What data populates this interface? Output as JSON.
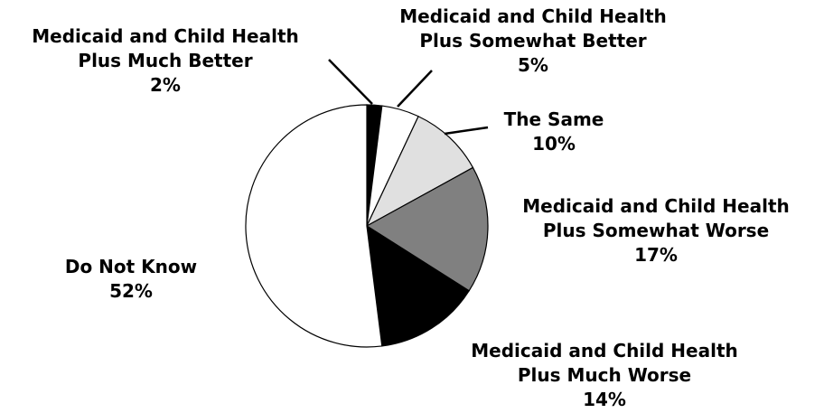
{
  "chart_data": {
    "type": "pie",
    "title": "",
    "start_angle_deg": 0,
    "direction": "clockwise",
    "slices": [
      {
        "label_lines": [
          "Medicaid and Child Health",
          "Plus Much Better"
        ],
        "value": 2,
        "value_label": "2%",
        "color": "#000000"
      },
      {
        "label_lines": [
          "Medicaid and Child Health",
          "Plus Somewhat Better"
        ],
        "value": 5,
        "value_label": "5%",
        "color": "#ffffff"
      },
      {
        "label_lines": [
          "The Same"
        ],
        "value": 10,
        "value_label": "10%",
        "color": "#e0e0e0"
      },
      {
        "label_lines": [
          "Medicaid and Child Health",
          "Plus Somewhat Worse"
        ],
        "value": 17,
        "value_label": "17%",
        "color": "#808080"
      },
      {
        "label_lines": [
          "Medicaid and Child Health",
          "Plus Much Worse"
        ],
        "value": 14,
        "value_label": "14%",
        "color": "#000000"
      },
      {
        "label_lines": [
          "Do Not Know"
        ],
        "value": 52,
        "value_label": "52%",
        "color": "#ffffff"
      }
    ]
  }
}
